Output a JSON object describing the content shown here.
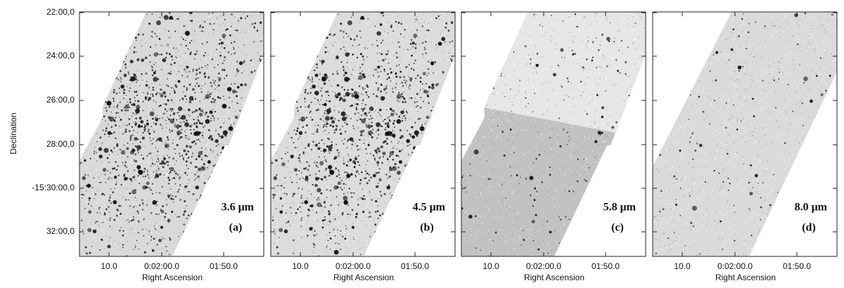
{
  "y_axis_label": "Declination",
  "x_axis_label": "Right Ascension",
  "y_ticks": [
    "22:00,0",
    "24:00,0",
    "26:00,0",
    "28:00,0",
    "-15:30:00,0",
    "32:00,0"
  ],
  "x_ticks": [
    "10.0",
    "0:02:00.0",
    "01:50.0"
  ],
  "panels": [
    {
      "band": "3.6 μm",
      "tag": "(a)"
    },
    {
      "band": "4.5 μm",
      "tag": "(b)"
    },
    {
      "band": "5.8 μm",
      "tag": "(c)"
    },
    {
      "band": "8.0 μm",
      "tag": "(d)"
    }
  ]
}
